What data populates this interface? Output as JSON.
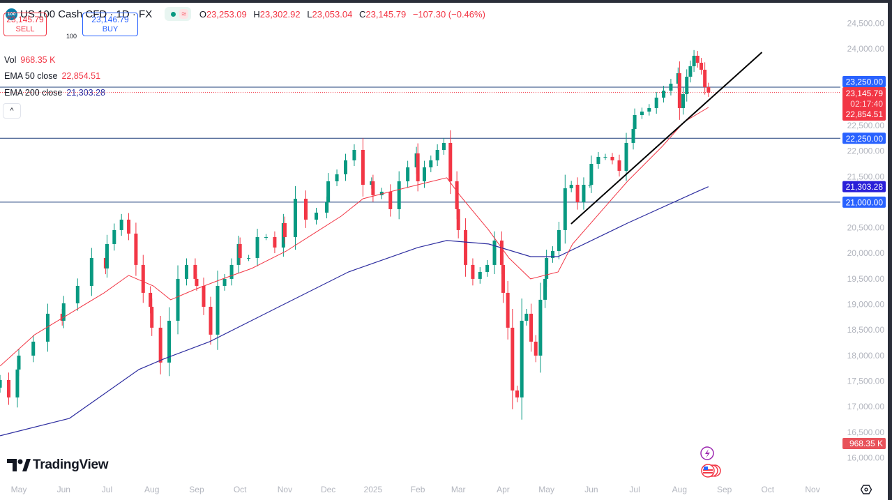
{
  "header": {
    "symbol_badge": "100",
    "title": "US 100 Cash CFD · 1D · FX",
    "ohlc": [
      {
        "k": "O",
        "v": "23,253.09"
      },
      {
        "k": "H",
        "v": "23,302.92"
      },
      {
        "k": "L",
        "v": "23,053.04"
      },
      {
        "k": "C",
        "v": "23,145.79"
      }
    ],
    "change": "−107.30 (−0.46%)"
  },
  "trade": {
    "sell_price": "23,145.79",
    "sell_label": "SELL",
    "quantity": "100",
    "buy_price": "23,146.79",
    "buy_label": "BUY"
  },
  "legend": {
    "vol_label": "Vol",
    "vol_value": "968.35 K",
    "ema50_label": "EMA 50 close",
    "ema50_value": "22,854.51",
    "ema200_label": "EMA 200 close",
    "ema200_value": "21,303.28"
  },
  "collapse_label": "^",
  "brand": "TradingView",
  "colors": {
    "up": "#089981",
    "down": "#f23645",
    "ema50": "#f23645",
    "ema200": "#2e2ea0",
    "hline": "#1e3f7a",
    "badge_blue": "#2962ff",
    "badge_ema200": "#2a1fd8",
    "badge_red": "#f23645"
  },
  "chart_data": {
    "type": "candlestick",
    "symbol": "US 100 Cash CFD",
    "interval": "1D",
    "range": [
      "2024-04-18",
      "2025-08-21"
    ],
    "ylim": [
      15800,
      24700
    ],
    "y_ticks": [
      "24,500.00",
      "24,000.00",
      "22,500.00",
      "22,000.00",
      "21,500.00",
      "20,500.00",
      "20,000.00",
      "19,500.00",
      "19,000.00",
      "18,500.00",
      "18,000.00",
      "17,500.00",
      "17,000.00",
      "16,500.00",
      "16,000.00"
    ],
    "y_tick_values": [
      24500,
      24000,
      22500,
      22000,
      21500,
      20500,
      20000,
      19500,
      19000,
      18500,
      18000,
      17500,
      17000,
      16500,
      16000
    ],
    "x_ticks": [
      {
        "label": "May",
        "date": "2024-05-01"
      },
      {
        "label": "Jun",
        "date": "2024-06-01"
      },
      {
        "label": "Jul",
        "date": "2024-07-01"
      },
      {
        "label": "Aug",
        "date": "2024-08-01"
      },
      {
        "label": "Sep",
        "date": "2024-09-01"
      },
      {
        "label": "Oct",
        "date": "2024-10-01"
      },
      {
        "label": "Nov",
        "date": "2024-11-01"
      },
      {
        "label": "Dec",
        "date": "2024-12-01"
      },
      {
        "label": "2025",
        "date": "2025-01-01"
      },
      {
        "label": "Feb",
        "date": "2025-02-01"
      },
      {
        "label": "Mar",
        "date": "2025-03-01"
      },
      {
        "label": "Apr",
        "date": "2025-04-01"
      },
      {
        "label": "May",
        "date": "2025-05-01"
      },
      {
        "label": "Jun",
        "date": "2025-06-01"
      },
      {
        "label": "Jul",
        "date": "2025-07-01"
      },
      {
        "label": "Aug",
        "date": "2025-08-01"
      },
      {
        "label": "Sep",
        "date": "2025-09-01"
      },
      {
        "label": "Oct",
        "date": "2025-10-01"
      },
      {
        "label": "Nov",
        "date": "2025-11-01"
      }
    ],
    "closes_by_month": [
      {
        "month": "2024-04",
        "closes": [
          17521,
          17180,
          17726
        ]
      },
      {
        "month": "2024-05",
        "closes": [
          17998,
          18271,
          18817,
          18680
        ]
      },
      {
        "month": "2024-06",
        "closes": [
          19021,
          19362,
          19908,
          19703
        ]
      },
      {
        "month": "2024-07",
        "closes": [
          20181,
          20454,
          20658,
          20385,
          19772,
          19226,
          18953
        ]
      },
      {
        "month": "2024-08",
        "closes": [
          18544,
          17862,
          18680,
          19499,
          19772,
          19499
        ]
      },
      {
        "month": "2024-09",
        "closes": [
          19362,
          18953,
          18408,
          19362,
          19499,
          19772,
          20181
        ]
      },
      {
        "month": "2024-10",
        "closes": [
          19908,
          19908,
          20317,
          20317,
          20113,
          20590
        ]
      },
      {
        "month": "2024-11",
        "closes": [
          20317,
          21067,
          20658,
          20795,
          20999
        ]
      },
      {
        "month": "2024-12",
        "closes": [
          21408,
          21545,
          21818,
          22022,
          21340,
          21408
        ]
      },
      {
        "month": "2025-01",
        "closes": [
          21136,
          21204,
          20863,
          21408,
          21681,
          21954
        ]
      },
      {
        "month": "2025-02",
        "closes": [
          21408,
          21681,
          21818,
          22022,
          22159,
          21408,
          20863
        ]
      },
      {
        "month": "2025-03",
        "closes": [
          20454,
          19772,
          19499,
          19635,
          19772,
          20249,
          19772
        ]
      },
      {
        "month": "2025-04",
        "closes": [
          19226,
          18544,
          17316,
          17180,
          18680,
          18817,
          18271,
          17998,
          19090,
          19499
        ]
      },
      {
        "month": "2025-05",
        "closes": [
          19908,
          20044,
          20454,
          21272,
          21340,
          20999,
          21340,
          21340
        ]
      },
      {
        "month": "2025-06",
        "closes": [
          21749,
          21886,
          21886,
          21818,
          21613,
          22159,
          22431
        ]
      },
      {
        "month": "2025-07",
        "closes": [
          22704,
          22772,
          22841,
          23045,
          23182,
          23318,
          23523
        ]
      },
      {
        "month": "2025-08",
        "closes": [
          22841,
          23113,
          23454,
          23659,
          23864,
          23727,
          23591,
          23250,
          23145.79
        ]
      }
    ],
    "ema50": [
      [
        "2024-04-18",
        17794
      ],
      [
        "2024-05-12",
        18408
      ],
      [
        "2024-06-05",
        18817
      ],
      [
        "2024-06-29",
        19226
      ],
      [
        "2024-07-16",
        19567
      ],
      [
        "2024-08-02",
        19362
      ],
      [
        "2024-08-14",
        19090
      ],
      [
        "2024-08-31",
        19294
      ],
      [
        "2024-09-19",
        19499
      ],
      [
        "2024-10-09",
        19703
      ],
      [
        "2024-11-02",
        20044
      ],
      [
        "2024-11-21",
        20386
      ],
      [
        "2024-12-10",
        20727
      ],
      [
        "2024-12-25",
        21067
      ],
      [
        "2025-01-13",
        21204
      ],
      [
        "2025-02-01",
        21340
      ],
      [
        "2025-02-21",
        21477
      ],
      [
        "2025-03-02",
        21136
      ],
      [
        "2025-03-22",
        20454
      ],
      [
        "2025-04-05",
        19908
      ],
      [
        "2025-04-20",
        19499
      ],
      [
        "2025-05-09",
        19635
      ],
      [
        "2025-05-19",
        20181
      ],
      [
        "2025-06-07",
        20795
      ],
      [
        "2025-06-26",
        21408
      ],
      [
        "2025-07-20",
        22090
      ],
      [
        "2025-08-04",
        22568
      ],
      [
        "2025-08-21",
        22854.51
      ]
    ],
    "ema200": [
      [
        "2024-04-18",
        16430
      ],
      [
        "2024-06-05",
        16771
      ],
      [
        "2024-07-23",
        17726
      ],
      [
        "2024-08-09",
        17930
      ],
      [
        "2024-09-10",
        18271
      ],
      [
        "2024-10-28",
        18953
      ],
      [
        "2024-12-15",
        19635
      ],
      [
        "2025-02-01",
        20113
      ],
      [
        "2025-02-21",
        20249
      ],
      [
        "2025-03-22",
        20181
      ],
      [
        "2025-04-20",
        19935
      ],
      [
        "2025-05-09",
        19935
      ],
      [
        "2025-06-26",
        20590
      ],
      [
        "2025-08-13",
        21204
      ],
      [
        "2025-08-21",
        21303.28
      ]
    ],
    "trendline": [
      [
        "2025-05-18",
        20576
      ],
      [
        "2025-09-27",
        23932
      ]
    ],
    "horizontal_lines": [
      23250,
      22250,
      21000
    ],
    "current_price": 23145.79,
    "price_badges": [
      {
        "name": "hline-23250",
        "value": 23250,
        "label": "23,250.00",
        "color": "#2962ff"
      },
      {
        "name": "hline-22250",
        "value": 22250,
        "label": "22,250.00",
        "color": "#2962ff"
      },
      {
        "name": "ema200",
        "value": 21303.28,
        "label": "21,303.28",
        "color": "#2a1fd8"
      },
      {
        "name": "hline-21000",
        "value": 21000,
        "label": "21,000.00",
        "color": "#2962ff"
      }
    ],
    "last_price_badge": {
      "price": "23,145.79",
      "countdown": "02:17:40",
      "ema50": "22,854.51"
    },
    "volume_badge": "968.35 K"
  }
}
